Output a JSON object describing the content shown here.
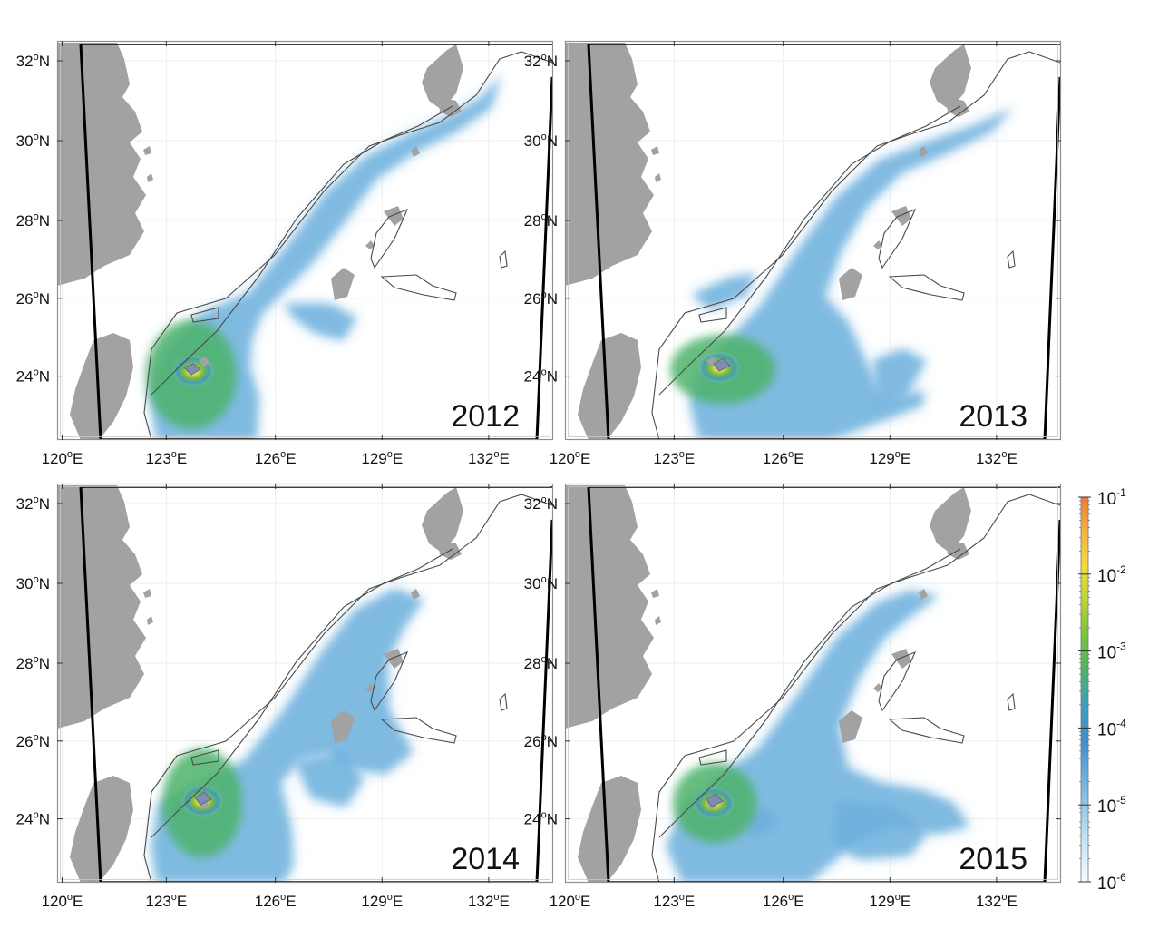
{
  "panels": [
    {
      "year": "2012"
    },
    {
      "year": "2013"
    },
    {
      "year": "2014"
    },
    {
      "year": "2015"
    }
  ],
  "lat_ticks": [
    {
      "deg": "32",
      "suf": "N"
    },
    {
      "deg": "30",
      "suf": "N"
    },
    {
      "deg": "28",
      "suf": "N"
    },
    {
      "deg": "26",
      "suf": "N"
    },
    {
      "deg": "24",
      "suf": "N"
    }
  ],
  "lon_ticks": [
    {
      "deg": "120",
      "suf": "E"
    },
    {
      "deg": "123",
      "suf": "E"
    },
    {
      "deg": "126",
      "suf": "E"
    },
    {
      "deg": "129",
      "suf": "E"
    },
    {
      "deg": "132",
      "suf": "E"
    }
  ],
  "degree_symbol": "o",
  "colorbar": {
    "base": "10",
    "exponents": [
      "-1",
      "-2",
      "-3",
      "-4",
      "-5",
      "-6"
    ],
    "colors": [
      "#f6fbff",
      "#cfe6f6",
      "#9fcdec",
      "#6aafdc",
      "#3f8fcd",
      "#3d9ec2",
      "#4cb36a",
      "#79c13f",
      "#b9d23a",
      "#f0dc3f",
      "#f5b342",
      "#ee7a35"
    ]
  },
  "style": {
    "land": "#a2a2a2",
    "contour": "#4a4a4a",
    "frame": "#8f8f8f",
    "boundary": "#000000"
  }
}
